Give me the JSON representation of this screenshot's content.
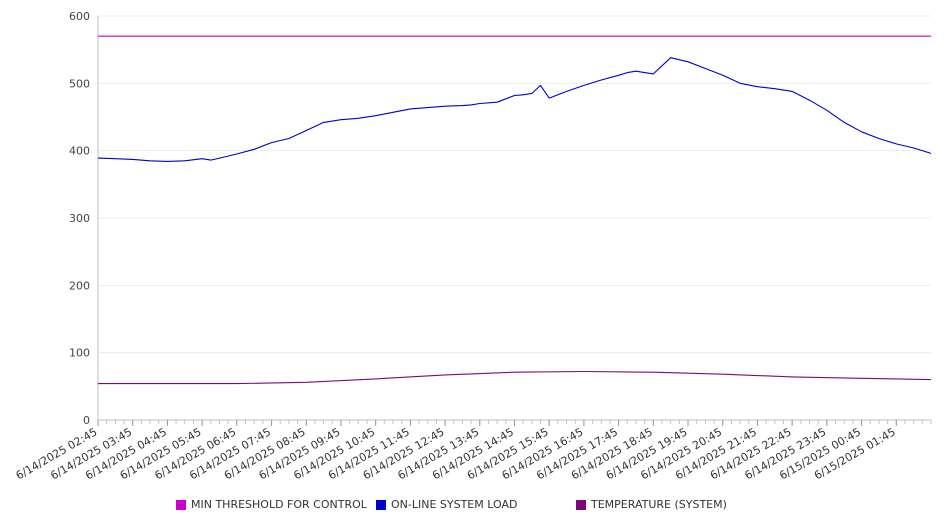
{
  "chart_data": {
    "type": "line",
    "title": "",
    "xlabel": "",
    "ylabel": "",
    "ylim": [
      0,
      600
    ],
    "yticks": [
      0,
      100,
      200,
      300,
      400,
      500,
      600
    ],
    "grid": "horizontal",
    "legend_position": "bottom",
    "x_tick_labels": [
      "6/14/2025 02:45",
      "6/14/2025 03:45",
      "6/14/2025 04:45",
      "6/14/2025 05:45",
      "6/14/2025 06:45",
      "6/14/2025 07:45",
      "6/14/2025 08:45",
      "6/14/2025 09:45",
      "6/14/2025 10:45",
      "6/14/2025 11:45",
      "6/14/2025 12:45",
      "6/14/2025 13:45",
      "6/14/2025 14:45",
      "6/14/2025 15:45",
      "6/14/2025 16:45",
      "6/14/2025 17:45",
      "6/14/2025 18:45",
      "6/14/2025 19:45",
      "6/14/2025 20:45",
      "6/14/2025 21:45",
      "6/14/2025 22:45",
      "6/14/2025 23:45",
      "6/15/2025 00:45",
      "6/15/2025 01:45"
    ],
    "series": [
      {
        "name": "MIN THRESHOLD FOR CONTROL",
        "color": "#cc00cc",
        "x": [
          "6/14/2025 02:45",
          "6/15/2025 02:45"
        ],
        "values": [
          570,
          570
        ]
      },
      {
        "name": "ON-LINE SYSTEM LOAD",
        "color": "#0000cc",
        "x": [
          "6/14/2025 02:45",
          "6/14/2025 03:15",
          "6/14/2025 03:45",
          "6/14/2025 04:15",
          "6/14/2025 04:45",
          "6/14/2025 05:15",
          "6/14/2025 05:45",
          "6/14/2025 06:00",
          "6/14/2025 06:15",
          "6/14/2025 06:45",
          "6/14/2025 07:15",
          "6/14/2025 07:45",
          "6/14/2025 08:15",
          "6/14/2025 08:45",
          "6/14/2025 09:15",
          "6/14/2025 09:45",
          "6/14/2025 10:15",
          "6/14/2025 10:45",
          "6/14/2025 11:15",
          "6/14/2025 11:45",
          "6/14/2025 12:15",
          "6/14/2025 12:45",
          "6/14/2025 13:15",
          "6/14/2025 13:30",
          "6/14/2025 13:45",
          "6/14/2025 14:15",
          "6/14/2025 14:45",
          "6/14/2025 15:00",
          "6/14/2025 15:15",
          "6/14/2025 15:30",
          "6/14/2025 15:45",
          "6/14/2025 16:15",
          "6/14/2025 16:45",
          "6/14/2025 17:15",
          "6/14/2025 17:45",
          "6/14/2025 18:00",
          "6/14/2025 18:15",
          "6/14/2025 18:45",
          "6/14/2025 19:15",
          "6/14/2025 19:45",
          "6/14/2025 20:15",
          "6/14/2025 20:45",
          "6/14/2025 21:15",
          "6/14/2025 21:45",
          "6/14/2025 22:15",
          "6/14/2025 22:45",
          "6/14/2025 23:15",
          "6/14/2025 23:45",
          "6/15/2025 00:15",
          "6/15/2025 00:45",
          "6/15/2025 01:15",
          "6/15/2025 01:45",
          "6/15/2025 02:15",
          "6/15/2025 02:45"
        ],
        "values": [
          389,
          388,
          387,
          385,
          384,
          385,
          388,
          386,
          389,
          395,
          402,
          412,
          418,
          430,
          442,
          446,
          448,
          452,
          457,
          462,
          464,
          466,
          467,
          468,
          470,
          472,
          482,
          483,
          485,
          497,
          478,
          488,
          497,
          505,
          512,
          516,
          518,
          514,
          538,
          532,
          522,
          512,
          500,
          495,
          492,
          488,
          475,
          460,
          442,
          428,
          418,
          410,
          404,
          396
        ]
      },
      {
        "name": "TEMPERATURE (SYSTEM)",
        "color": "#7a0a7a",
        "x": [
          "6/14/2025 02:45",
          "6/14/2025 04:45",
          "6/14/2025 06:45",
          "6/14/2025 08:45",
          "6/14/2025 10:45",
          "6/14/2025 12:45",
          "6/14/2025 14:45",
          "6/14/2025 16:45",
          "6/14/2025 18:45",
          "6/14/2025 20:45",
          "6/14/2025 22:45",
          "6/15/2025 00:45",
          "6/15/2025 02:45"
        ],
        "values": [
          54,
          54,
          54,
          56,
          61,
          67,
          71,
          72,
          71,
          68,
          64,
          62,
          60
        ]
      }
    ]
  }
}
